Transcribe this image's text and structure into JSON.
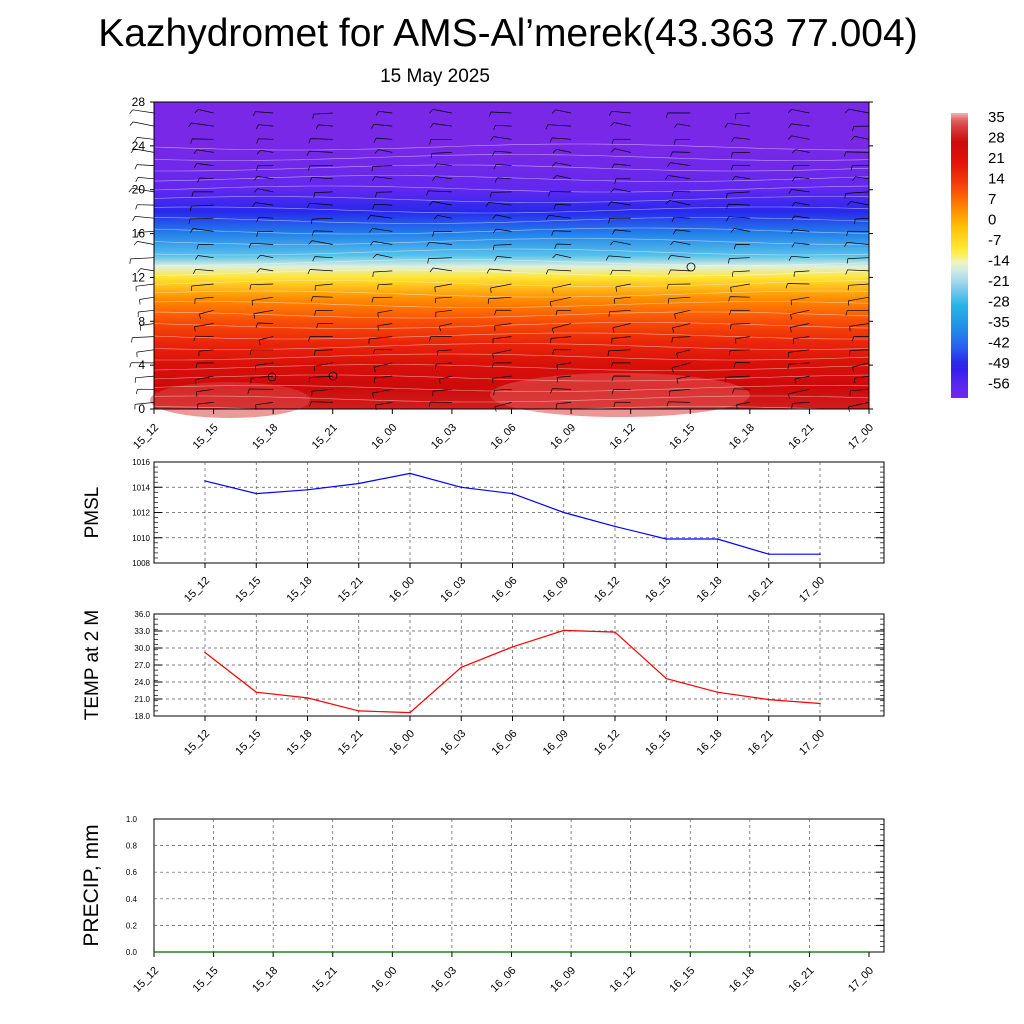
{
  "title": "Kazhydromet for AMS-Al’merek(43.363 77.004)",
  "date": "15 May 2025",
  "colors": {
    "pmsl_line": "#0000ff",
    "temp_line": "#ff0000",
    "precip_line": "#006400",
    "grid": "#555555",
    "background": "#ffffff"
  },
  "chart_data": [
    {
      "type": "heatmap",
      "title": "",
      "description_of_variable": "temperature with height, wind barbs overlaid",
      "x_tick_labels": [
        "15_12",
        "15_15",
        "15_18",
        "15_21",
        "16_00",
        "16_03",
        "16_06",
        "16_09",
        "16_12",
        "16_15",
        "16_18",
        "16_21",
        "17_00"
      ],
      "y_tick_labels": [
        "0",
        "4",
        "8",
        "12",
        "16",
        "20",
        "24",
        "28"
      ],
      "ylim": [
        0,
        28
      ],
      "approx_temperature_by_height": [
        {
          "y": 0,
          "temp": 30
        },
        {
          "y": 2,
          "temp": 28
        },
        {
          "y": 4,
          "temp": 24
        },
        {
          "y": 6,
          "temp": 18
        },
        {
          "y": 8,
          "temp": 12
        },
        {
          "y": 10,
          "temp": 5
        },
        {
          "y": 12,
          "temp": -8
        },
        {
          "y": 13,
          "temp": -15
        },
        {
          "y": 14,
          "temp": -25
        },
        {
          "y": 16,
          "temp": -38
        },
        {
          "y": 18,
          "temp": -48
        },
        {
          "y": 20,
          "temp": -56
        },
        {
          "y": 22,
          "temp": -60
        },
        {
          "y": 24,
          "temp": -62
        },
        {
          "y": 28,
          "temp": -62
        }
      ],
      "colorbar_labels": [
        "35",
        "28",
        "21",
        "14",
        "7",
        "0",
        "-7",
        "-14",
        "-21",
        "-28",
        "-35",
        "-42",
        "-49",
        "-56"
      ],
      "colorbar_range": [
        -60,
        38
      ]
    },
    {
      "type": "line",
      "ylabel": "PMSL",
      "ylim": [
        1008,
        1016
      ],
      "y_tick_labels": [
        "1016",
        "1014",
        "1012",
        "1010",
        "1008"
      ],
      "categories": [
        "15_12",
        "15_15",
        "15_18",
        "15_21",
        "16_00",
        "16_03",
        "16_06",
        "16_09",
        "16_12",
        "16_15",
        "16_18",
        "16_21",
        "17_00"
      ],
      "series": [
        {
          "values": [
            1014.5,
            1013.5,
            1013.8,
            1014.3,
            1015.1,
            1014.0,
            1013.5,
            1012.0,
            1010.9,
            1009.9,
            1009.9,
            1008.7,
            1008.7
          ]
        }
      ],
      "grid": true
    },
    {
      "type": "line",
      "ylabel": "TEMP at 2 M",
      "ylim": [
        18.0,
        36.0
      ],
      "y_tick_labels": [
        "36.0",
        "33.0",
        "30.0",
        "27.0",
        "24.0",
        "21.0",
        "18.0"
      ],
      "categories": [
        "15_12",
        "15_15",
        "15_18",
        "15_21",
        "16_00",
        "16_03",
        "16_06",
        "16_09",
        "16_12",
        "16_15",
        "16_18",
        "16_21",
        "17_00"
      ],
      "series": [
        {
          "values": [
            29.2,
            22.2,
            21.2,
            18.9,
            18.6,
            26.6,
            30.2,
            33.1,
            32.8,
            24.6,
            22.2,
            20.9,
            20.2
          ]
        }
      ],
      "grid": true
    },
    {
      "type": "line",
      "ylabel": "PRECIP, mm",
      "ylim": [
        0.0,
        1.0
      ],
      "y_tick_labels": [
        "1.0",
        "0.8",
        "0.6",
        "0.4",
        "0.2",
        "0.0"
      ],
      "categories": [
        "15_12",
        "15_15",
        "15_18",
        "15_21",
        "16_00",
        "16_03",
        "16_06",
        "16_09",
        "16_12",
        "16_15",
        "16_18",
        "16_21",
        "17_00"
      ],
      "series": [
        {
          "values": [
            0,
            0,
            0,
            0,
            0,
            0,
            0,
            0,
            0,
            0,
            0,
            0,
            0
          ]
        }
      ],
      "grid": true
    }
  ]
}
